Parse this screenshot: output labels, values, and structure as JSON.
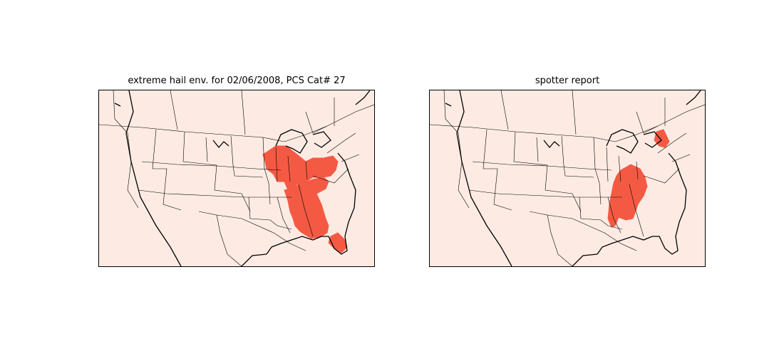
{
  "colors": {
    "land_background": "#fdebe3",
    "highlight_fill": "#f45a43",
    "border_line": "#000000",
    "page_background": "#ffffff"
  },
  "panels": [
    {
      "title": "extreme hail env. for 02/06/2008, PCS Cat# 27",
      "map": "north-america-state-borders",
      "highlighted_regions": [
        "Midwest-Ohio Valley",
        "Mid-Atlantic",
        "Southeast (AL, GA)",
        "South Florida"
      ]
    },
    {
      "title": "spotter report",
      "map": "north-america-state-borders",
      "highlighted_regions": [
        "Tennessee-Alabama-Mississippi",
        "Pennsylvania"
      ]
    }
  ]
}
